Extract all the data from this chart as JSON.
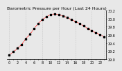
{
  "title": "Barometric Pressure per Hour (Last 24 Hours)",
  "background_color": "#e8e8e8",
  "plot_bg_color": "#e8e8e8",
  "line_color": "#ff0000",
  "marker_color": "#000000",
  "grid_color": "#aaaaaa",
  "hours": [
    0,
    1,
    2,
    3,
    4,
    5,
    6,
    7,
    8,
    9,
    10,
    11,
    12,
    13,
    14,
    15,
    16,
    17,
    18,
    19,
    20,
    21,
    22,
    23
  ],
  "pressure": [
    29.1,
    29.18,
    29.27,
    29.36,
    29.5,
    29.62,
    29.75,
    29.88,
    29.98,
    30.05,
    30.1,
    30.12,
    30.1,
    30.07,
    30.03,
    29.98,
    29.93,
    29.88,
    29.82,
    29.76,
    29.7,
    29.65,
    29.6,
    29.55
  ],
  "ylim_min": 29.0,
  "ylim_max": 30.2,
  "ytick_values": [
    29.0,
    29.2,
    29.4,
    29.6,
    29.8,
    30.0,
    30.2
  ],
  "ytick_labels": [
    "29.0",
    "29.2",
    "29.4",
    "29.6",
    "29.8",
    "30.0",
    "30.2"
  ],
  "xtick_step": 1,
  "title_fontsize": 4.5,
  "tick_fontsize": 3.5,
  "linewidth": 0.6,
  "markersize": 1.5,
  "vgrid_positions": [
    0,
    4,
    8,
    12,
    16,
    20,
    23
  ]
}
